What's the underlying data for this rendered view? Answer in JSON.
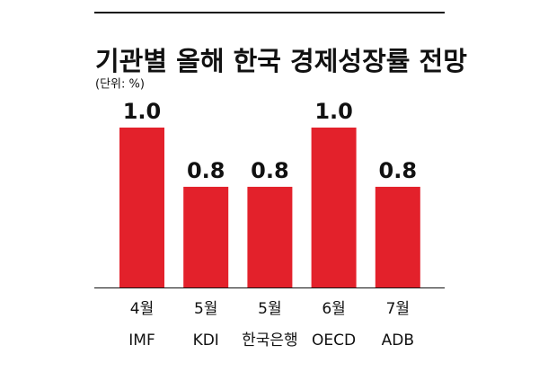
{
  "chart_data": {
    "type": "bar",
    "title": "기관별 올해 한국 경제성장률 전망",
    "subtitle": "(단위: %)",
    "categories": [
      "IMF",
      "KDI",
      "한국은행",
      "OECD",
      "ADB"
    ],
    "months": [
      "4월",
      "5월",
      "5월",
      "6월",
      "7월"
    ],
    "values": [
      1.0,
      0.8,
      0.8,
      1.0,
      0.8
    ],
    "value_labels": [
      "1.0",
      "0.8",
      "0.8",
      "1.0",
      "0.8"
    ],
    "color": "#e3212b",
    "ylim": [
      0.46,
      1.0
    ]
  }
}
